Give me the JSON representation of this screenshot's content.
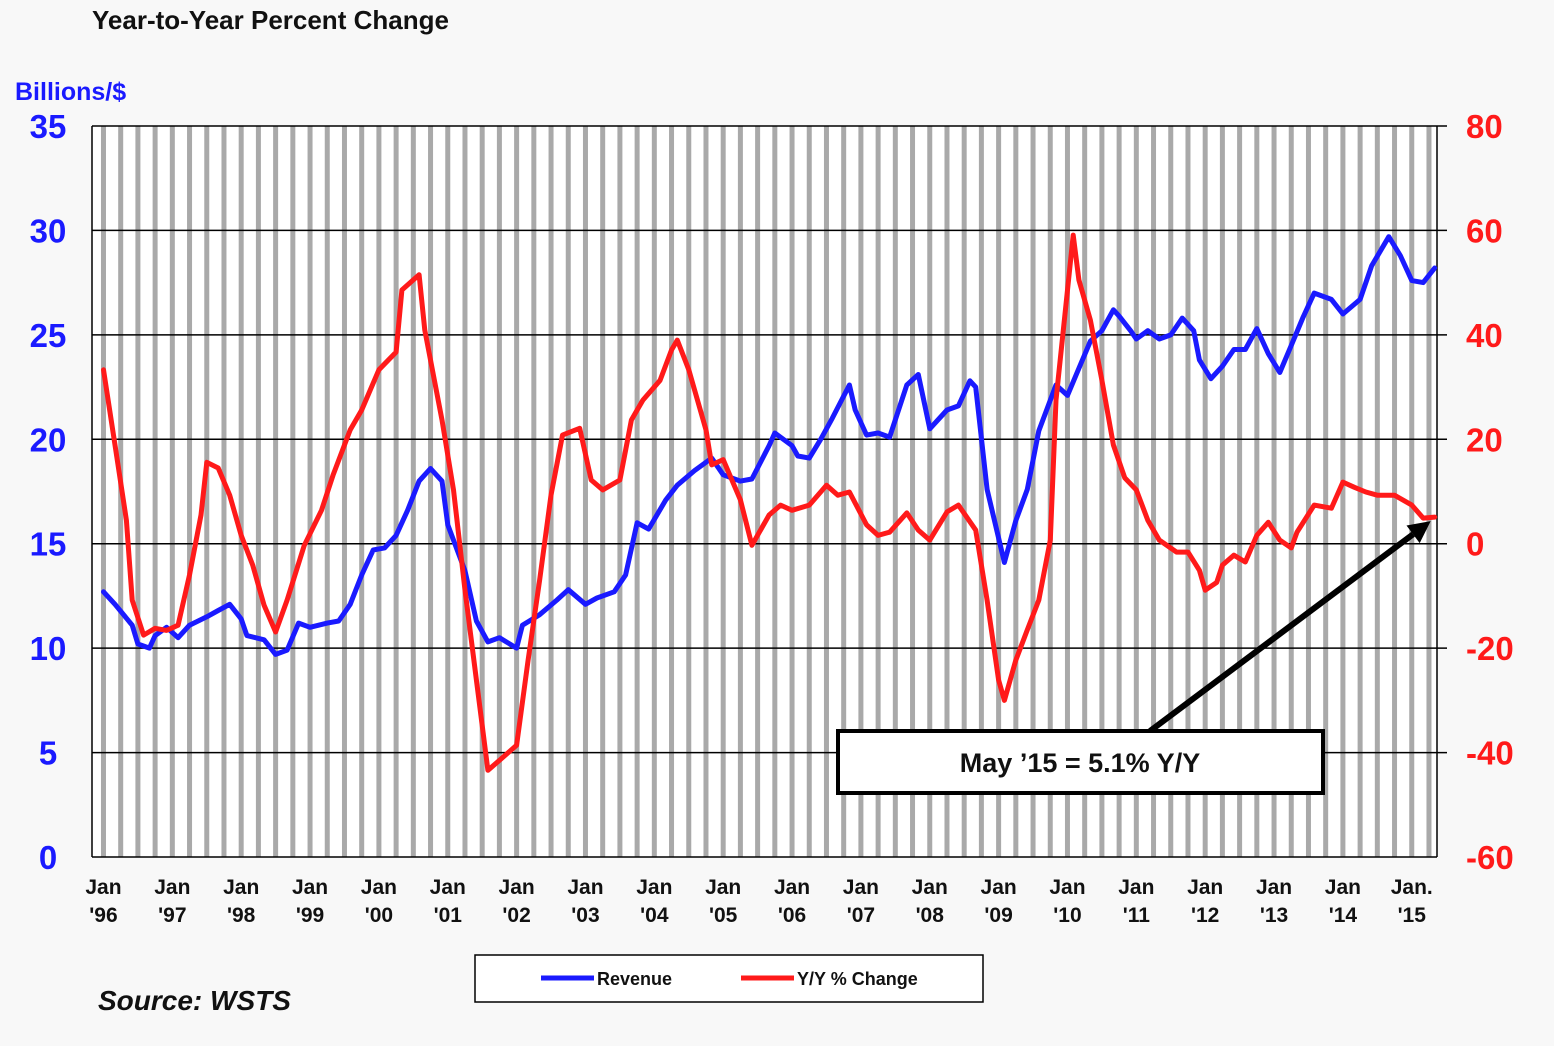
{
  "chart_data": {
    "type": "line",
    "title": "Year-to-Year Percent Change",
    "left_axis_label": "Billions/$",
    "source": "Source: WSTS",
    "x_unit": "months since Jan 1996",
    "xlim": [
      -2,
      232.4
    ],
    "y_left": {
      "ylim": [
        0,
        35
      ],
      "ticks": [
        "0",
        "5",
        "10",
        "15",
        "20",
        "25",
        "30",
        "35"
      ],
      "tick_values": [
        0,
        5,
        10,
        15,
        20,
        25,
        30,
        35
      ],
      "color": "#1a1aff"
    },
    "y_right": {
      "ylim": [
        -60,
        80
      ],
      "ticks": [
        "-60",
        "-40",
        "-20",
        "0",
        "20",
        "40",
        "60",
        "80"
      ],
      "tick_values": [
        -60,
        -40,
        -20,
        0,
        20,
        40,
        60,
        80
      ],
      "color": "#ff1a1a"
    },
    "x_ticks": [
      {
        "month": 0,
        "l1": "Jan",
        "l2": "'96"
      },
      {
        "month": 12,
        "l1": "Jan",
        "l2": "'97"
      },
      {
        "month": 24,
        "l1": "Jan",
        "l2": "'98"
      },
      {
        "month": 36,
        "l1": "Jan",
        "l2": "'99"
      },
      {
        "month": 48,
        "l1": "Jan",
        "l2": "'00"
      },
      {
        "month": 60,
        "l1": "Jan",
        "l2": "'01"
      },
      {
        "month": 72,
        "l1": "Jan",
        "l2": "'02"
      },
      {
        "month": 84,
        "l1": "Jan",
        "l2": "'03"
      },
      {
        "month": 96,
        "l1": "Jan",
        "l2": "'04"
      },
      {
        "month": 108,
        "l1": "Jan",
        "l2": "'05"
      },
      {
        "month": 120,
        "l1": "Jan",
        "l2": "'06"
      },
      {
        "month": 132,
        "l1": "Jan",
        "l2": "'07"
      },
      {
        "month": 144,
        "l1": "Jan",
        "l2": "'08"
      },
      {
        "month": 156,
        "l1": "Jan",
        "l2": "'09"
      },
      {
        "month": 168,
        "l1": "Jan",
        "l2": "'10"
      },
      {
        "month": 180,
        "l1": "Jan",
        "l2": "'11"
      },
      {
        "month": 192,
        "l1": "Jan",
        "l2": "'12"
      },
      {
        "month": 204,
        "l1": "Jan",
        "l2": "'13"
      },
      {
        "month": 216,
        "l1": "Jan",
        "l2": "'14"
      },
      {
        "month": 228,
        "l1": "Jan.",
        "l2": "'15"
      }
    ],
    "grid": "vertical quarterly bands, horizontal at major ticks",
    "legend": {
      "position": "bottom-center",
      "entries": [
        "Revenue",
        "Y/Y % Change"
      ]
    },
    "annotation": {
      "text": "May ’15 = 5.1% Y/Y",
      "points_to": {
        "month": 232,
        "value": 5.1
      }
    },
    "series": [
      {
        "name": "Revenue",
        "axis": "left",
        "color": "#1a1aff",
        "points": [
          [
            0,
            12.7
          ],
          [
            2,
            12.1
          ],
          [
            5,
            11.1
          ],
          [
            6,
            10.2
          ],
          [
            8,
            10.0
          ],
          [
            9,
            10.6
          ],
          [
            11,
            11.0
          ],
          [
            13,
            10.5
          ],
          [
            15,
            11.1
          ],
          [
            18,
            11.5
          ],
          [
            20,
            11.8
          ],
          [
            22,
            12.1
          ],
          [
            24,
            11.4
          ],
          [
            25,
            10.6
          ],
          [
            28,
            10.4
          ],
          [
            30,
            9.7
          ],
          [
            32,
            9.9
          ],
          [
            34,
            11.2
          ],
          [
            36,
            11.0
          ],
          [
            39,
            11.2
          ],
          [
            41,
            11.3
          ],
          [
            43,
            12.1
          ],
          [
            45,
            13.5
          ],
          [
            47,
            14.7
          ],
          [
            49,
            14.8
          ],
          [
            51,
            15.4
          ],
          [
            53,
            16.6
          ],
          [
            55,
            18.0
          ],
          [
            57,
            18.6
          ],
          [
            59,
            18.0
          ],
          [
            60,
            15.9
          ],
          [
            63,
            13.7
          ],
          [
            65,
            11.3
          ],
          [
            67,
            10.3
          ],
          [
            69,
            10.5
          ],
          [
            72,
            10.0
          ],
          [
            73,
            11.1
          ],
          [
            76,
            11.6
          ],
          [
            79,
            12.3
          ],
          [
            81,
            12.8
          ],
          [
            84,
            12.1
          ],
          [
            86,
            12.4
          ],
          [
            89,
            12.7
          ],
          [
            91,
            13.5
          ],
          [
            93,
            16.0
          ],
          [
            95,
            15.7
          ],
          [
            98,
            17.1
          ],
          [
            100,
            17.8
          ],
          [
            103,
            18.5
          ],
          [
            106,
            19.1
          ],
          [
            108,
            18.3
          ],
          [
            111,
            18.0
          ],
          [
            113,
            18.1
          ],
          [
            116,
            19.7
          ],
          [
            117,
            20.3
          ],
          [
            120,
            19.7
          ],
          [
            121,
            19.2
          ],
          [
            123,
            19.1
          ],
          [
            125,
            20.0
          ],
          [
            127,
            21.0
          ],
          [
            130,
            22.6
          ],
          [
            131,
            21.4
          ],
          [
            133,
            20.2
          ],
          [
            135,
            20.3
          ],
          [
            137,
            20.1
          ],
          [
            140,
            22.6
          ],
          [
            142,
            23.1
          ],
          [
            144,
            20.5
          ],
          [
            147,
            21.4
          ],
          [
            149,
            21.6
          ],
          [
            151,
            22.8
          ],
          [
            152,
            22.5
          ],
          [
            154,
            17.6
          ],
          [
            157,
            14.1
          ],
          [
            159,
            16.1
          ],
          [
            161,
            17.6
          ],
          [
            163,
            20.4
          ],
          [
            166,
            22.6
          ],
          [
            168,
            22.1
          ],
          [
            170,
            23.4
          ],
          [
            172,
            24.7
          ],
          [
            174,
            25.2
          ],
          [
            176,
            26.2
          ],
          [
            177,
            25.9
          ],
          [
            179,
            25.2
          ],
          [
            180,
            24.8
          ],
          [
            182,
            25.2
          ],
          [
            184,
            24.8
          ],
          [
            186,
            25.0
          ],
          [
            188,
            25.8
          ],
          [
            190,
            25.2
          ],
          [
            191,
            23.8
          ],
          [
            193,
            22.9
          ],
          [
            195,
            23.5
          ],
          [
            197,
            24.3
          ],
          [
            199,
            24.3
          ],
          [
            201,
            25.3
          ],
          [
            203,
            24.1
          ],
          [
            205,
            23.2
          ],
          [
            207,
            24.5
          ],
          [
            209,
            25.8
          ],
          [
            211,
            27.0
          ],
          [
            214,
            26.7
          ],
          [
            216,
            26.0
          ],
          [
            219,
            26.7
          ],
          [
            221,
            28.3
          ],
          [
            224,
            29.7
          ],
          [
            226,
            28.8
          ],
          [
            228,
            27.6
          ],
          [
            230,
            27.5
          ],
          [
            232,
            28.2
          ]
        ]
      },
      {
        "name": "Y/Y % Change",
        "axis": "right",
        "color": "#ff1a1a",
        "points": [
          [
            0,
            33.3
          ],
          [
            2,
            18.9
          ],
          [
            4,
            4.5
          ],
          [
            5,
            -10.8
          ],
          [
            7,
            -17.5
          ],
          [
            9,
            -16.2
          ],
          [
            11,
            -16.6
          ],
          [
            13,
            -15.6
          ],
          [
            15,
            -6.0
          ],
          [
            17,
            5.5
          ],
          [
            18,
            15.6
          ],
          [
            20,
            14.5
          ],
          [
            22,
            9.3
          ],
          [
            24,
            1.6
          ],
          [
            26,
            -4.1
          ],
          [
            28,
            -11.8
          ],
          [
            30,
            -16.9
          ],
          [
            32,
            -10.8
          ],
          [
            35,
            -0.3
          ],
          [
            38,
            6.4
          ],
          [
            40,
            13.1
          ],
          [
            43,
            21.8
          ],
          [
            45,
            25.6
          ],
          [
            48,
            33.3
          ],
          [
            51,
            36.7
          ],
          [
            52,
            48.6
          ],
          [
            55,
            51.5
          ],
          [
            56,
            40.9
          ],
          [
            59,
            23.7
          ],
          [
            61,
            10.3
          ],
          [
            63,
            -8.9
          ],
          [
            65,
            -26.1
          ],
          [
            67,
            -43.4
          ],
          [
            69,
            -41.5
          ],
          [
            72,
            -38.6
          ],
          [
            74,
            -22.3
          ],
          [
            76,
            -7.0
          ],
          [
            78,
            9.3
          ],
          [
            80,
            20.8
          ],
          [
            83,
            22.1
          ],
          [
            85,
            12.2
          ],
          [
            87,
            10.3
          ],
          [
            90,
            12.2
          ],
          [
            92,
            23.7
          ],
          [
            94,
            27.5
          ],
          [
            97,
            31.3
          ],
          [
            99,
            37.1
          ],
          [
            100,
            39.0
          ],
          [
            102,
            33.3
          ],
          [
            105,
            21.8
          ],
          [
            106,
            15.1
          ],
          [
            108,
            16.1
          ],
          [
            111,
            8.4
          ],
          [
            113,
            -0.3
          ],
          [
            116,
            5.5
          ],
          [
            118,
            7.4
          ],
          [
            120,
            6.4
          ],
          [
            123,
            7.4
          ],
          [
            126,
            11.2
          ],
          [
            128,
            9.3
          ],
          [
            130,
            9.9
          ],
          [
            133,
            3.6
          ],
          [
            135,
            1.6
          ],
          [
            137,
            2.2
          ],
          [
            140,
            5.9
          ],
          [
            142,
            2.6
          ],
          [
            144,
            0.7
          ],
          [
            147,
            6.1
          ],
          [
            149,
            7.4
          ],
          [
            152,
            2.6
          ],
          [
            154,
            -10.8
          ],
          [
            156,
            -26.1
          ],
          [
            157,
            -30.0
          ],
          [
            159,
            -22.3
          ],
          [
            161,
            -16.5
          ],
          [
            163,
            -10.8
          ],
          [
            165,
            0.7
          ],
          [
            166,
            27.5
          ],
          [
            168,
            48.6
          ],
          [
            169,
            59.1
          ],
          [
            170,
            50.5
          ],
          [
            172,
            42.8
          ],
          [
            174,
            31.3
          ],
          [
            176,
            18.9
          ],
          [
            178,
            12.6
          ],
          [
            180,
            10.3
          ],
          [
            182,
            4.5
          ],
          [
            184,
            0.7
          ],
          [
            187,
            -1.6
          ],
          [
            189,
            -1.6
          ],
          [
            191,
            -5.1
          ],
          [
            192,
            -8.9
          ],
          [
            194,
            -7.4
          ],
          [
            195,
            -4.1
          ],
          [
            197,
            -2.2
          ],
          [
            199,
            -3.5
          ],
          [
            201,
            1.6
          ],
          [
            203,
            4.1
          ],
          [
            205,
            0.7
          ],
          [
            207,
            -0.8
          ],
          [
            208,
            2.2
          ],
          [
            211,
            7.4
          ],
          [
            214,
            6.8
          ],
          [
            216,
            11.8
          ],
          [
            218,
            10.8
          ],
          [
            220,
            9.9
          ],
          [
            222,
            9.3
          ],
          [
            225,
            9.3
          ],
          [
            228,
            7.4
          ],
          [
            230,
            4.9
          ],
          [
            232,
            5.1
          ]
        ]
      }
    ]
  }
}
